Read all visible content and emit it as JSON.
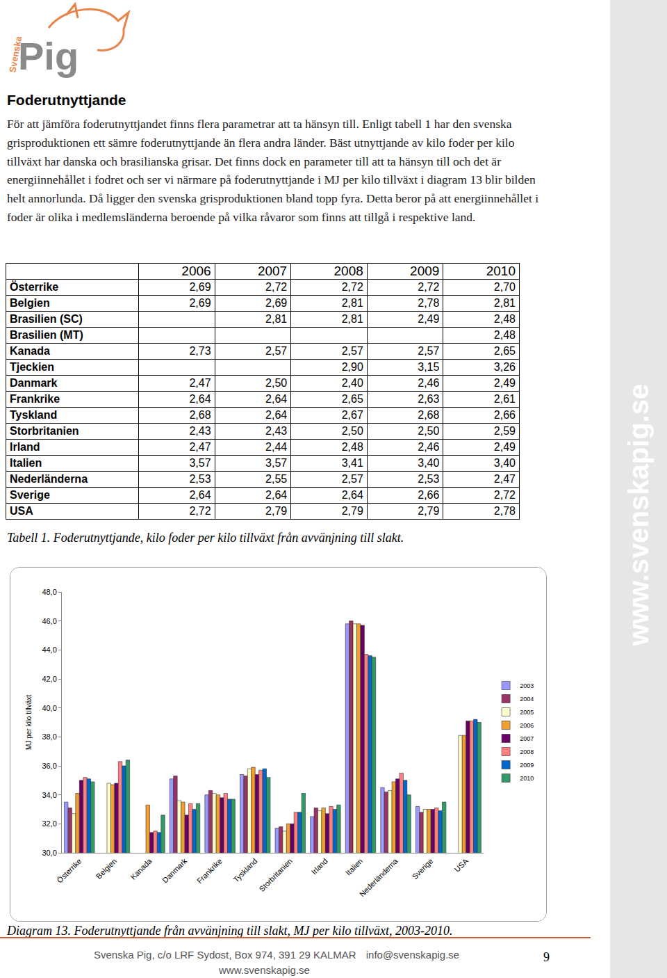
{
  "logo": {
    "prefix": "Svenska",
    "name": "Pig"
  },
  "heading": "Foderutnyttjande",
  "paragraph": "För att jämföra foderutnyttjandet finns flera parametrar att ta hänsyn till. Enligt tabell 1 har den svenska grisproduktionen ett sämre foderutnyttjande än flera andra länder. Bäst utnyttjande av kilo foder per kilo tillväxt har danska och brasilianska grisar. Det finns dock en parameter till att ta hänsyn till och det är energiinnehållet i fodret och ser vi närmare på foderutnyttjande i MJ per kilo tillväxt i diagram 13 blir bilden helt annorlunda. Då ligger den svenska grisproduktionen bland topp fyra. Detta beror på att energiinnehållet i foder är olika i medlemsländerna beroende på vilka råvaror som finns att tillgå i respektive land.",
  "table": {
    "columns": [
      null,
      "2006",
      "2007",
      "2008",
      "2009",
      "2010"
    ],
    "rows": [
      [
        "Österrike",
        "2,69",
        "2,72",
        "2,72",
        "2,72",
        "2,70"
      ],
      [
        "Belgien",
        "2,69",
        "2,69",
        "2,81",
        "2,78",
        "2,81"
      ],
      [
        "Brasilien (SC)",
        null,
        "2,81",
        "2,81",
        "2,49",
        "2,48"
      ],
      [
        "Brasilien (MT)",
        null,
        null,
        null,
        null,
        "2,48"
      ],
      [
        "Kanada",
        "2,73",
        "2,57",
        "2,57",
        "2,57",
        "2,65"
      ],
      [
        "Tjeckien",
        null,
        null,
        "2,90",
        "3,15",
        "3,26"
      ],
      [
        "Danmark",
        "2,47",
        "2,50",
        "2,40",
        "2,46",
        "2,49"
      ],
      [
        "Frankrike",
        "2,64",
        "2,64",
        "2,65",
        "2,63",
        "2,61"
      ],
      [
        "Tyskland",
        "2,68",
        "2,64",
        "2,67",
        "2,68",
        "2,66"
      ],
      [
        "Storbritanien",
        "2,43",
        "2,43",
        "2,50",
        "2,50",
        "2,59"
      ],
      [
        "Irland",
        "2,47",
        "2,44",
        "2,48",
        "2,46",
        "2,49"
      ],
      [
        "Italien",
        "3,57",
        "3,57",
        "3,41",
        "3,40",
        "3,40"
      ],
      [
        "Nederländerna",
        "2,53",
        "2,55",
        "2,57",
        "2,53",
        "2,47"
      ],
      [
        "Sverige",
        "2,64",
        "2,64",
        "2,64",
        "2,66",
        "2,72"
      ],
      [
        "USA",
        "2,72",
        "2,79",
        "2,79",
        "2,79",
        "2,78"
      ]
    ],
    "caption": "Tabell 1. Foderutnyttjande, kilo foder per kilo tillväxt från avvänjning till slakt."
  },
  "chart_data": {
    "type": "bar",
    "y_label": "MJ per kilo tillväxt",
    "categories": [
      "Österrike",
      "Belgien",
      "Kanada",
      "Danmark",
      "Frankrike",
      "Tyskland",
      "Storbritanien",
      "Irland",
      "Italien",
      "Nederländerna",
      "Sverige",
      "USA"
    ],
    "series": [
      {
        "name": "2003",
        "color": "#9999ff",
        "values": [
          33.5,
          null,
          null,
          35.1,
          34.0,
          35.4,
          31.7,
          32.5,
          45.8,
          34.5,
          33.2,
          null
        ]
      },
      {
        "name": "2004",
        "color": "#993366",
        "values": [
          33.1,
          null,
          null,
          35.3,
          34.3,
          35.3,
          31.8,
          33.1,
          46.0,
          34.2,
          32.8,
          null
        ]
      },
      {
        "name": "2005",
        "color": "#ffffcc",
        "values": [
          32.7,
          34.8,
          null,
          33.6,
          34.1,
          35.8,
          31.5,
          32.9,
          45.8,
          34.3,
          33.0,
          38.1
        ]
      },
      {
        "name": "2006",
        "color": "#f0a030",
        "values": [
          34.1,
          34.7,
          33.3,
          33.5,
          34.0,
          35.9,
          32.0,
          33.1,
          45.8,
          34.9,
          33.0,
          38.1
        ]
      },
      {
        "name": "2007",
        "color": "#660066",
        "values": [
          35.0,
          34.8,
          31.4,
          32.6,
          33.8,
          35.4,
          32.0,
          32.7,
          45.7,
          35.1,
          33.0,
          39.1
        ]
      },
      {
        "name": "2008",
        "color": "#ff8080",
        "values": [
          35.2,
          36.3,
          31.5,
          33.4,
          34.1,
          35.7,
          32.8,
          33.2,
          43.7,
          35.5,
          33.1,
          39.1
        ]
      },
      {
        "name": "2009",
        "color": "#0066cc",
        "values": [
          35.1,
          36.0,
          31.4,
          33.0,
          33.7,
          35.8,
          32.8,
          33.0,
          43.6,
          35.0,
          32.9,
          39.2
        ]
      },
      {
        "name": "2010",
        "color": "#339966",
        "values": [
          34.9,
          36.4,
          32.6,
          33.4,
          33.7,
          35.2,
          34.1,
          33.3,
          43.5,
          34.0,
          33.5,
          39.0
        ]
      }
    ],
    "ylim": [
      30,
      48
    ],
    "yticks": [
      {
        "value": 30,
        "label": "30,0"
      },
      {
        "value": 32,
        "label": "32,0"
      },
      {
        "value": 34,
        "label": "34,0"
      },
      {
        "value": 36,
        "label": "36,0"
      },
      {
        "value": 38,
        "label": "38,0"
      },
      {
        "value": 40,
        "label": "40,0"
      },
      {
        "value": 42,
        "label": "42,0"
      },
      {
        "value": 44,
        "label": "44,0"
      },
      {
        "value": 46,
        "label": "46,0"
      },
      {
        "value": 48,
        "label": "48,0"
      }
    ],
    "grid": false,
    "legend": "right"
  },
  "diagram_caption": "Diagram 13. Foderutnyttjande från avvänjning till slakt, MJ per kilo tillväxt, 2003-2010.",
  "sidebar": "www.svenskapig.se",
  "footer": {
    "address": "Svenska Pig, c/o LRF Sydost, Box 974, 391 29 KALMAR",
    "email": "info@svenskapig.se",
    "web": "www.svenskapig.se",
    "page": "9"
  }
}
